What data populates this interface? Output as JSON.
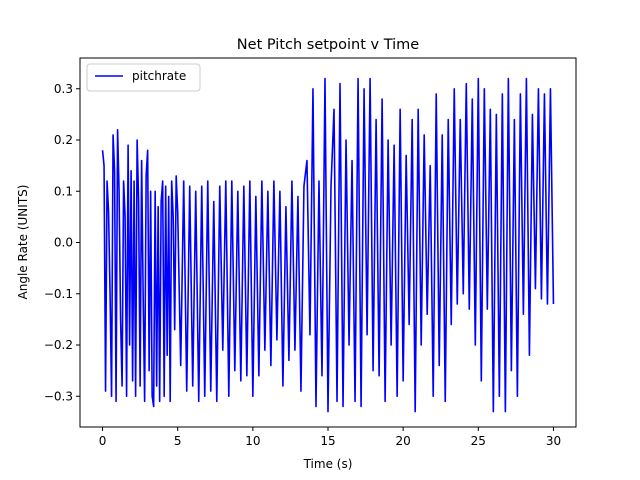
{
  "chart_data": {
    "type": "line",
    "title": "Net Pitch setpoint v Time",
    "xlabel": "Time (s)",
    "ylabel": "Angle Rate (UNITS)",
    "xlim": [
      -1.5,
      31.5
    ],
    "ylim": [
      -0.36,
      0.36
    ],
    "xticks": [
      0,
      5,
      10,
      15,
      20,
      25,
      30
    ],
    "yticks": [
      -0.3,
      -0.2,
      -0.1,
      0.0,
      0.1,
      0.2,
      0.3
    ],
    "xtick_labels": [
      "0",
      "5",
      "10",
      "15",
      "20",
      "25",
      "30"
    ],
    "ytick_labels": [
      "−0.3",
      "−0.2",
      "−0.1",
      "0.0",
      "0.1",
      "0.2",
      "0.3"
    ],
    "grid": false,
    "legend_position": "top-left",
    "colors": {
      "series": "#0000ff",
      "axes": "#000000"
    },
    "series": [
      {
        "name": "pitchrate",
        "color": "#0000ff",
        "x": [
          0,
          0.1,
          0.2,
          0.3,
          0.4,
          0.5,
          0.6,
          0.7,
          0.8,
          0.9,
          1.0,
          1.1,
          1.2,
          1.3,
          1.4,
          1.5,
          1.6,
          1.7,
          1.8,
          1.9,
          2.0,
          2.1,
          2.2,
          2.3,
          2.4,
          2.5,
          2.6,
          2.7,
          2.8,
          2.9,
          3.0,
          3.1,
          3.2,
          3.3,
          3.4,
          3.5,
          3.6,
          3.7,
          3.8,
          3.9,
          4.0,
          4.1,
          4.2,
          4.3,
          4.4,
          4.5,
          4.6,
          4.7,
          4.8,
          4.9,
          5.0,
          5.2,
          5.4,
          5.6,
          5.8,
          6.0,
          6.2,
          6.4,
          6.6,
          6.8,
          7.0,
          7.2,
          7.4,
          7.6,
          7.8,
          8.0,
          8.2,
          8.4,
          8.6,
          8.8,
          9.0,
          9.2,
          9.4,
          9.6,
          9.8,
          10.0,
          10.2,
          10.4,
          10.6,
          10.8,
          11.0,
          11.2,
          11.4,
          11.6,
          11.8,
          12.0,
          12.2,
          12.4,
          12.6,
          12.8,
          13.0,
          13.2,
          13.4,
          13.6,
          13.8,
          14.0,
          14.2,
          14.4,
          14.6,
          14.8,
          15.0,
          15.2,
          15.4,
          15.6,
          15.8,
          16.0,
          16.2,
          16.4,
          16.6,
          16.8,
          17.0,
          17.2,
          17.4,
          17.6,
          17.8,
          18.0,
          18.2,
          18.4,
          18.6,
          18.8,
          19.0,
          19.2,
          19.4,
          19.6,
          19.8,
          20.0,
          20.2,
          20.4,
          20.6,
          20.8,
          21.0,
          21.2,
          21.4,
          21.6,
          21.8,
          22.0,
          22.2,
          22.4,
          22.6,
          22.8,
          23.0,
          23.2,
          23.4,
          23.6,
          23.8,
          24.0,
          24.2,
          24.4,
          24.6,
          24.8,
          25.0,
          25.2,
          25.4,
          25.6,
          25.8,
          26.0,
          26.2,
          26.4,
          26.6,
          26.8,
          27.0,
          27.2,
          27.4,
          27.6,
          27.8,
          28.0,
          28.2,
          28.4,
          28.6,
          28.8,
          29.0,
          29.2,
          29.4,
          29.6,
          29.8,
          30.0
        ],
        "y": [
          0.18,
          0.15,
          -0.29,
          0.12,
          0.06,
          -0.1,
          -0.3,
          0.21,
          0.14,
          -0.31,
          0.22,
          0.1,
          -0.15,
          -0.28,
          0.12,
          0.05,
          -0.3,
          0.19,
          -0.2,
          0.14,
          -0.27,
          0.12,
          -0.3,
          0.2,
          0.08,
          -0.28,
          0.16,
          -0.1,
          -0.31,
          0.13,
          0.18,
          -0.25,
          0.1,
          -0.3,
          -0.32,
          0.1,
          -0.28,
          0.07,
          -0.31,
          0.08,
          0.12,
          -0.3,
          0.11,
          -0.22,
          0.09,
          -0.31,
          0.12,
          0.05,
          -0.17,
          0.13,
          0.06,
          -0.24,
          0.12,
          -0.29,
          0.11,
          -0.28,
          0.1,
          -0.31,
          0.11,
          -0.3,
          0.12,
          -0.29,
          0.08,
          -0.31,
          0.11,
          -0.21,
          0.12,
          -0.3,
          0.12,
          -0.25,
          0.1,
          -0.27,
          0.11,
          -0.26,
          0.12,
          -0.3,
          0.09,
          -0.26,
          0.12,
          -0.21,
          0.1,
          -0.24,
          0.12,
          -0.19,
          0.1,
          -0.28,
          0.07,
          -0.23,
          0.12,
          -0.21,
          0.09,
          -0.29,
          0.11,
          0.16,
          -0.18,
          0.3,
          -0.32,
          0.12,
          -0.26,
          0.32,
          -0.33,
          0.11,
          0.26,
          -0.31,
          0.31,
          -0.32,
          0.2,
          -0.2,
          0.16,
          -0.31,
          0.32,
          -0.32,
          0.3,
          -0.18,
          0.32,
          -0.25,
          0.24,
          -0.26,
          0.28,
          -0.31,
          0.2,
          -0.2,
          0.19,
          -0.3,
          0.26,
          -0.27,
          0.17,
          -0.16,
          0.24,
          -0.33,
          0.26,
          -0.2,
          0.21,
          -0.14,
          0.15,
          -0.3,
          0.29,
          -0.24,
          0.21,
          -0.31,
          0.24,
          -0.16,
          0.3,
          -0.12,
          0.24,
          -0.1,
          0.31,
          -0.13,
          0.28,
          -0.2,
          0.32,
          -0.27,
          0.3,
          -0.13,
          0.26,
          -0.33,
          0.25,
          -0.3,
          0.29,
          -0.33,
          0.32,
          -0.25,
          0.24,
          -0.3,
          0.29,
          -0.14,
          0.32,
          -0.22,
          0.25,
          -0.09,
          0.3,
          -0.11,
          0.29,
          -0.12,
          0.3,
          -0.12
        ]
      }
    ]
  }
}
